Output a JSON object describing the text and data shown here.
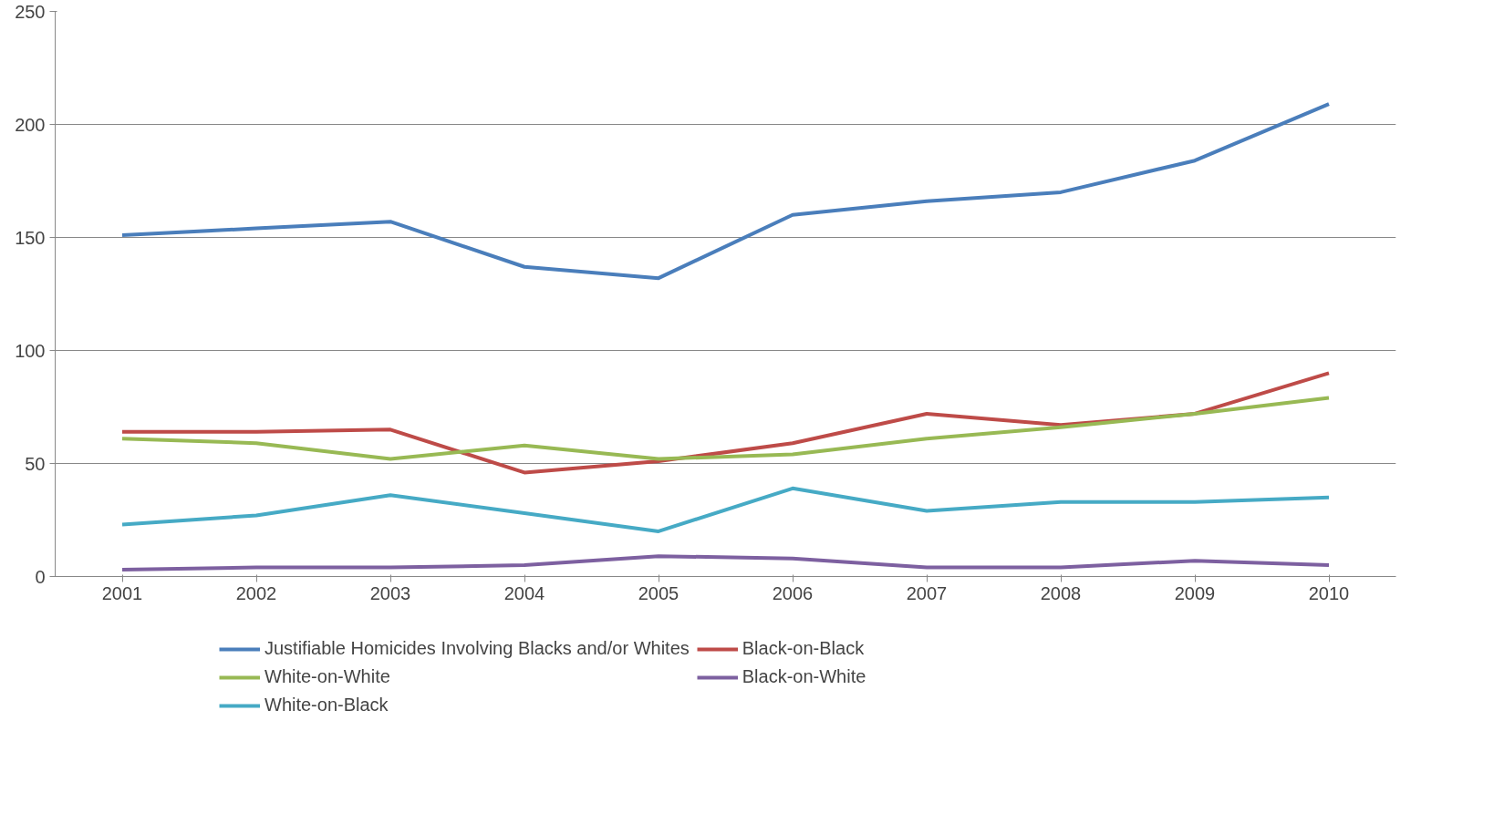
{
  "chart_data": {
    "type": "line",
    "categories": [
      "2001",
      "2002",
      "2003",
      "2004",
      "2005",
      "2006",
      "2007",
      "2008",
      "2009",
      "2010"
    ],
    "ylim": [
      0,
      250
    ],
    "yticks": [
      0,
      50,
      100,
      150,
      200,
      250
    ],
    "grid": "y",
    "legend": "bottom",
    "marker": "none",
    "line_style": "solid",
    "series": [
      {
        "name": "Justifiable Homicides Involving Blacks and/or Whites",
        "color": "#4a7ebb",
        "values": [
          151,
          154,
          157,
          137,
          132,
          160,
          166,
          170,
          184,
          209
        ]
      },
      {
        "name": "Black-on-Black",
        "color": "#be4b48",
        "values": [
          64,
          64,
          65,
          46,
          51,
          59,
          72,
          67,
          72,
          90
        ]
      },
      {
        "name": "White-on-White",
        "color": "#98b954",
        "values": [
          61,
          59,
          52,
          58,
          52,
          54,
          61,
          66,
          72,
          79
        ]
      },
      {
        "name": "Black-on-White",
        "color": "#7d60a0",
        "values": [
          3,
          4,
          4,
          5,
          9,
          8,
          4,
          4,
          7,
          5
        ]
      },
      {
        "name": "White-on-Black",
        "color": "#46aac5",
        "values": [
          23,
          27,
          36,
          28,
          20,
          39,
          29,
          33,
          33,
          35
        ]
      }
    ]
  }
}
